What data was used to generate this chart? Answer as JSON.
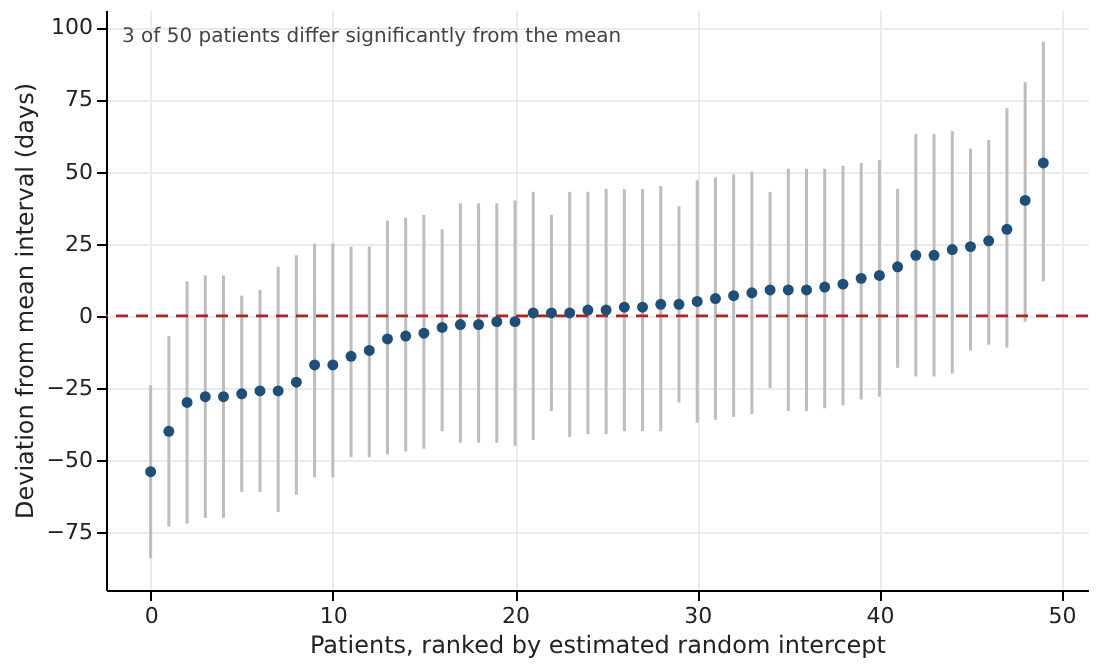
{
  "chart_data": {
    "type": "scatter",
    "xlabel": "Patients, ranked by estimated random intercept",
    "ylabel": "Deviation from mean interval (days)",
    "annotations": [
      "3 of 50 patients differ significantly from the mean"
    ],
    "x": [
      0,
      1,
      2,
      3,
      4,
      5,
      6,
      7,
      8,
      9,
      10,
      11,
      12,
      13,
      14,
      15,
      16,
      17,
      18,
      19,
      20,
      21,
      22,
      23,
      24,
      25,
      26,
      27,
      28,
      29,
      30,
      31,
      32,
      33,
      34,
      35,
      36,
      37,
      38,
      39,
      40,
      41,
      42,
      43,
      44,
      45,
      46,
      47,
      48,
      49
    ],
    "series": [
      {
        "color": "#1f4e79",
        "values": [
          -54,
          -40,
          -30,
          -28,
          -28,
          -27,
          -26,
          -26,
          -23,
          -17,
          -17,
          -14,
          -12,
          -8,
          -7,
          -6,
          -4,
          -3,
          -3,
          -2,
          -2,
          1,
          1,
          1,
          2,
          2,
          3,
          3,
          4,
          4,
          5,
          6,
          7,
          8,
          9,
          9,
          9,
          10,
          11,
          13,
          14,
          17,
          21,
          21,
          23,
          24,
          26,
          30,
          40,
          53
        ],
        "errors": [
          [
            -84,
            -24
          ],
          [
            -73,
            -7
          ],
          [
            -72,
            12
          ],
          [
            -70,
            14
          ],
          [
            -70,
            14
          ],
          [
            -61,
            7
          ],
          [
            -61,
            9
          ],
          [
            -68,
            17
          ],
          [
            -62,
            21
          ],
          [
            -56,
            25
          ],
          [
            -56,
            25
          ],
          [
            -49,
            24
          ],
          [
            -49,
            24
          ],
          [
            -48,
            33
          ],
          [
            -47,
            34
          ],
          [
            -46,
            35
          ],
          [
            -40,
            30
          ],
          [
            -44,
            39
          ],
          [
            -44,
            39
          ],
          [
            -44,
            39
          ],
          [
            -45,
            40
          ],
          [
            -43,
            43
          ],
          [
            -33,
            35
          ],
          [
            -42,
            43
          ],
          [
            -41,
            43
          ],
          [
            -41,
            44
          ],
          [
            -40,
            44
          ],
          [
            -40,
            44
          ],
          [
            -40,
            45
          ],
          [
            -30,
            38
          ],
          [
            -37,
            47
          ],
          [
            -36,
            48
          ],
          [
            -35,
            49
          ],
          [
            -34,
            50
          ],
          [
            -25,
            43
          ],
          [
            -33,
            51
          ],
          [
            -33,
            51
          ],
          [
            -32,
            51
          ],
          [
            -31,
            52
          ],
          [
            -29,
            53
          ],
          [
            -28,
            54
          ],
          [
            -18,
            44
          ],
          [
            -21,
            63
          ],
          [
            -21,
            63
          ],
          [
            -20,
            64
          ],
          [
            -12,
            58
          ],
          [
            -10,
            61
          ],
          [
            -11,
            72
          ],
          [
            -2,
            81
          ],
          [
            12,
            95
          ]
        ]
      }
    ],
    "xlim": [
      -2.45,
      51.45
    ],
    "xticks": [
      0,
      10,
      20,
      30,
      40,
      50
    ],
    "ylim": [
      -95,
      106
    ],
    "yticks": [
      -75,
      -50,
      -25,
      0,
      25,
      50,
      75,
      100
    ],
    "ref_lines": [
      {
        "axis": "y",
        "value": 0,
        "color": "#b22222",
        "line_style": "dashed"
      }
    ],
    "grid": true,
    "marker": "circle"
  }
}
